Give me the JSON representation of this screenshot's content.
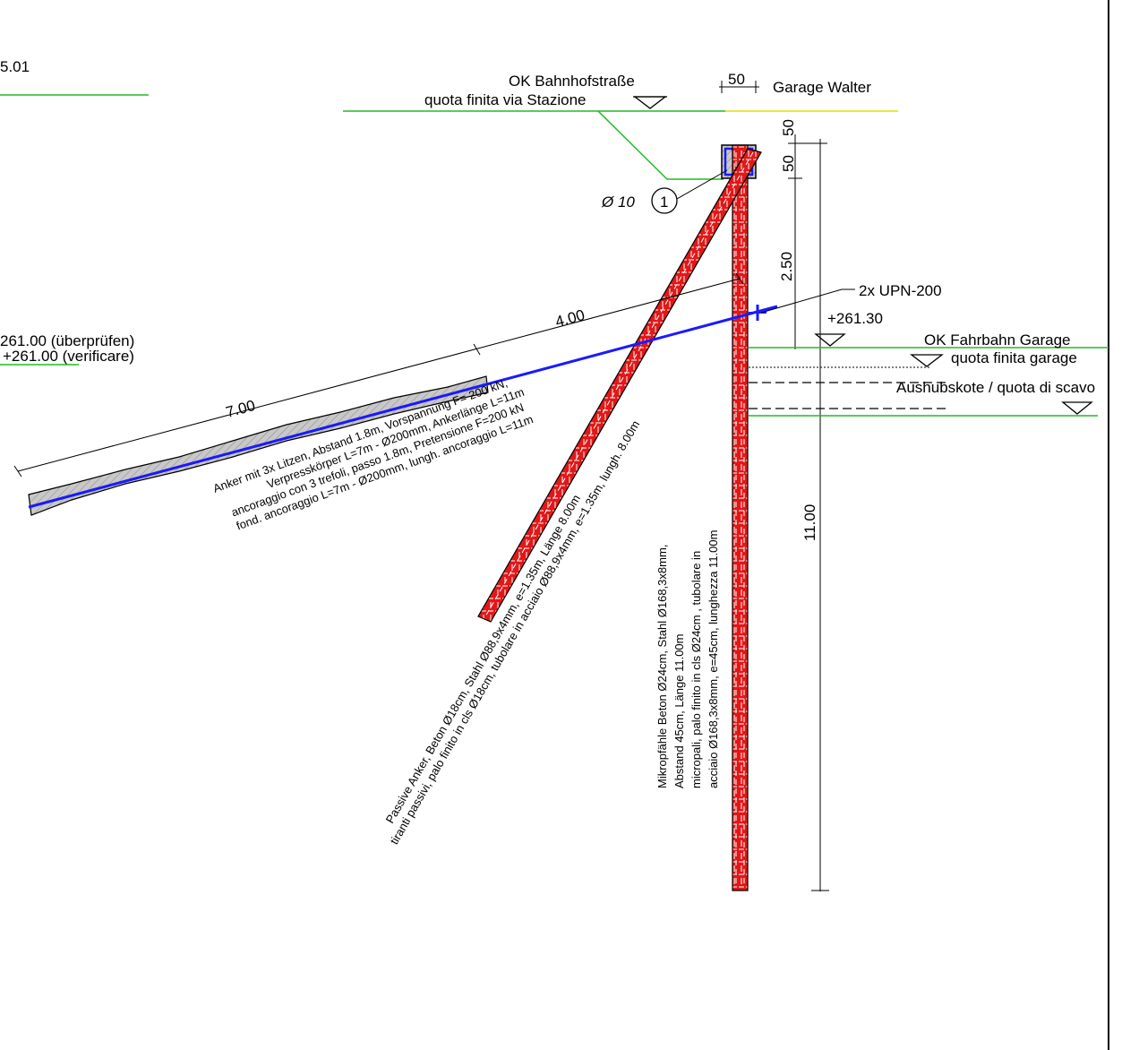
{
  "colors": {
    "ground_line": "#22bb22",
    "road_surface": "#e8e840",
    "anchor_tendon": "#1a1aff",
    "pile_steel": "#e01818",
    "grout_hatch": "#c8c8c8",
    "ink": "#000000"
  },
  "labels": {
    "corner_value": "5.01",
    "ok_bahnhofstrasse": "OK Bahnhofstraße",
    "quota_via_stazione": "quota finita via Stazione",
    "garage_walter": "Garage Walter",
    "bar_diameter": "Ø 10",
    "detail_marker": "1",
    "upn_profile": "2x UPN-200",
    "level_261_30": "+261.30",
    "ok_fahrbahn_garage": "OK Fahrbahn Garage",
    "quota_finita_garage": "quota finita garage",
    "aushubkote": "Aushubskote / quota di scavo",
    "level_261_check_de": "261.00 (überprüfen)",
    "level_261_check_it": "+261.00 (verificare)"
  },
  "dimensions": {
    "top_width": "50",
    "cap_height_1": "50",
    "cap_height_2": "50",
    "to_waler": "2.50",
    "pile_length": "11.00",
    "anchor_free_length": "4.00",
    "anchor_bond_length": "7.00"
  },
  "notes": {
    "anchor": [
      "Anker mit 3x Litzen, Abstand 1.8m, Vorspannung F= 200 kN,",
      "Verpresskörper L=7m - Ø200mm, Ankerlänge L=11m",
      "ancoraggio con 3 trefoli, passo 1.8m, Pretensione F=200 kN",
      "fond. ancoraggio L=7m - Ø200mm, lungh. ancoraggio L=11m"
    ],
    "passive_anchor": [
      "Passive Anker, Beton Ø18cm, Stahl Ø88,9x4mm, e=1.35m, Länge 8.00m",
      "tiranti passivi, palo finito in cls Ø18cm, tubolare in acciaio Ø88,9x4mm, e=1.35m, lungh. 8.00m"
    ],
    "micropile": [
      "Mikropfähle Beton Ø24cm, Stahl Ø168,3x8mm,",
      "Abstand 45cm, Länge 11.00m",
      "micropali, palo finito in cls Ø24cm , tubolare in",
      "acciaio Ø168,3x8mm, e=45cm, lunghezza 11.00m"
    ]
  }
}
